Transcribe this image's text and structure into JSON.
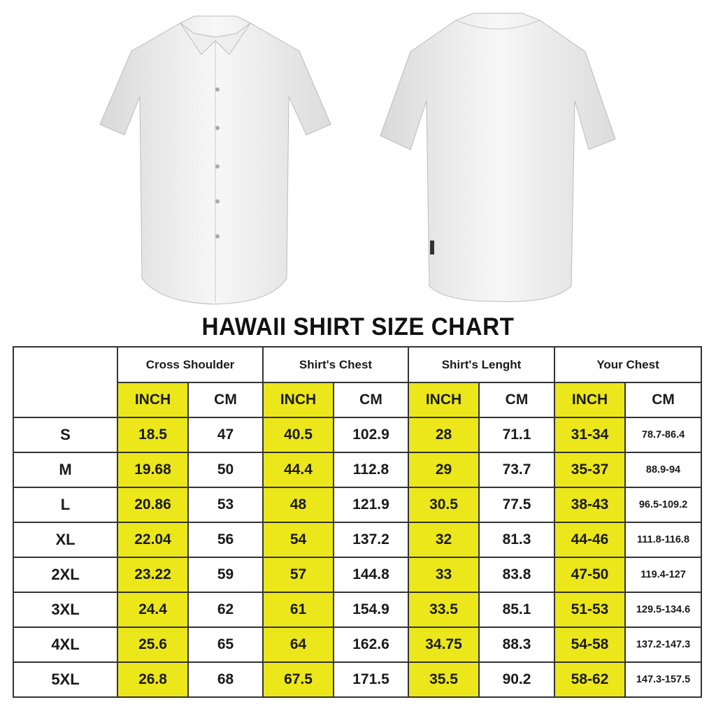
{
  "title": "HAWAII SHIRT SIZE CHART",
  "colors": {
    "inch_highlight": "#ece71a",
    "border": "#333333"
  },
  "images": [
    "shirt-front",
    "shirt-back"
  ],
  "groups": [
    "Cross Shoulder",
    "Shirt's Chest",
    "Shirt's Lenght",
    "Your Chest"
  ],
  "units": [
    "INCH",
    "CM",
    "INCH",
    "CM",
    "INCH",
    "CM",
    "INCH",
    "CM"
  ],
  "rows": [
    {
      "size": "S",
      "cells": [
        "18.5",
        "47",
        "40.5",
        "102.9",
        "28",
        "71.1",
        "31-34",
        "78.7-86.4"
      ]
    },
    {
      "size": "M",
      "cells": [
        "19.68",
        "50",
        "44.4",
        "112.8",
        "29",
        "73.7",
        "35-37",
        "88.9-94"
      ]
    },
    {
      "size": "L",
      "cells": [
        "20.86",
        "53",
        "48",
        "121.9",
        "30.5",
        "77.5",
        "38-43",
        "96.5-109.2"
      ]
    },
    {
      "size": "XL",
      "cells": [
        "22.04",
        "56",
        "54",
        "137.2",
        "32",
        "81.3",
        "44-46",
        "111.8-116.8"
      ]
    },
    {
      "size": "2XL",
      "cells": [
        "23.22",
        "59",
        "57",
        "144.8",
        "33",
        "83.8",
        "47-50",
        "119.4-127"
      ]
    },
    {
      "size": "3XL",
      "cells": [
        "24.4",
        "62",
        "61",
        "154.9",
        "33.5",
        "85.1",
        "51-53",
        "129.5-134.6"
      ]
    },
    {
      "size": "4XL",
      "cells": [
        "25.6",
        "65",
        "64",
        "162.6",
        "34.75",
        "88.3",
        "54-58",
        "137.2-147.3"
      ]
    },
    {
      "size": "5XL",
      "cells": [
        "26.8",
        "68",
        "67.5",
        "171.5",
        "35.5",
        "90.2",
        "58-62",
        "147.3-157.5"
      ]
    }
  ]
}
